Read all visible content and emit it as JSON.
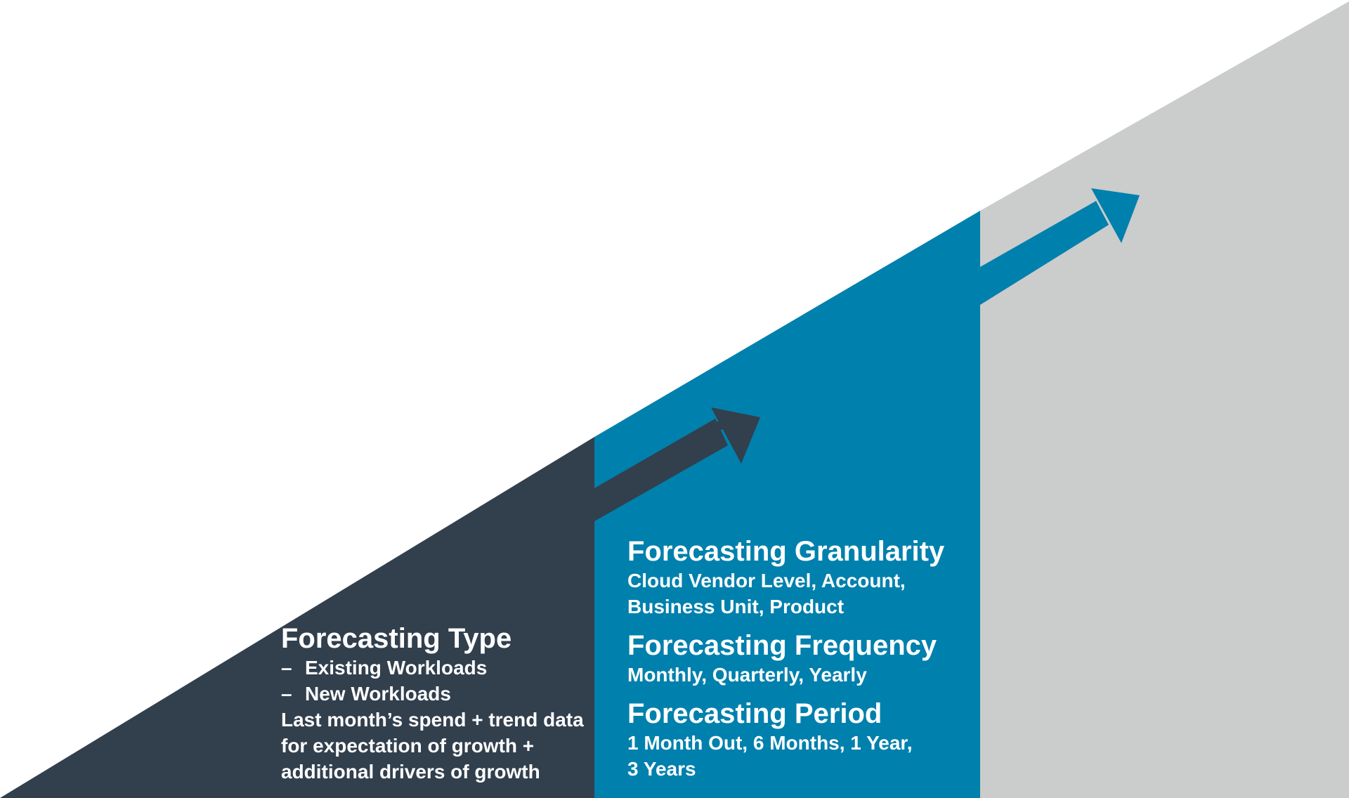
{
  "colors": {
    "background": "#ffffff",
    "dark_section": "#323f4d",
    "blue_section": "#0080ad",
    "gray_section": "#cbcccc",
    "text": "#ffffff"
  },
  "stages": [
    {
      "name": "dark-stage",
      "heading": "Forecasting Type",
      "bullets": [
        "Existing Workloads",
        "New Workloads"
      ],
      "description": "Last month’s spend + trend data for expectation of growth + additional drivers of growth"
    },
    {
      "name": "blue-stage",
      "sections": [
        {
          "heading": "Forecasting Granularity",
          "body": "Cloud Vendor Level, Account, Business Unit, Product"
        },
        {
          "heading": "Forecasting Frequency",
          "body": "Monthly, Quarterly, Yearly"
        },
        {
          "heading": "Forecasting Period",
          "body": "1 Month Out, 6 Months, 1 Year, 3 Years"
        }
      ]
    },
    {
      "name": "gray-stage"
    }
  ],
  "bullet_marker": "–"
}
